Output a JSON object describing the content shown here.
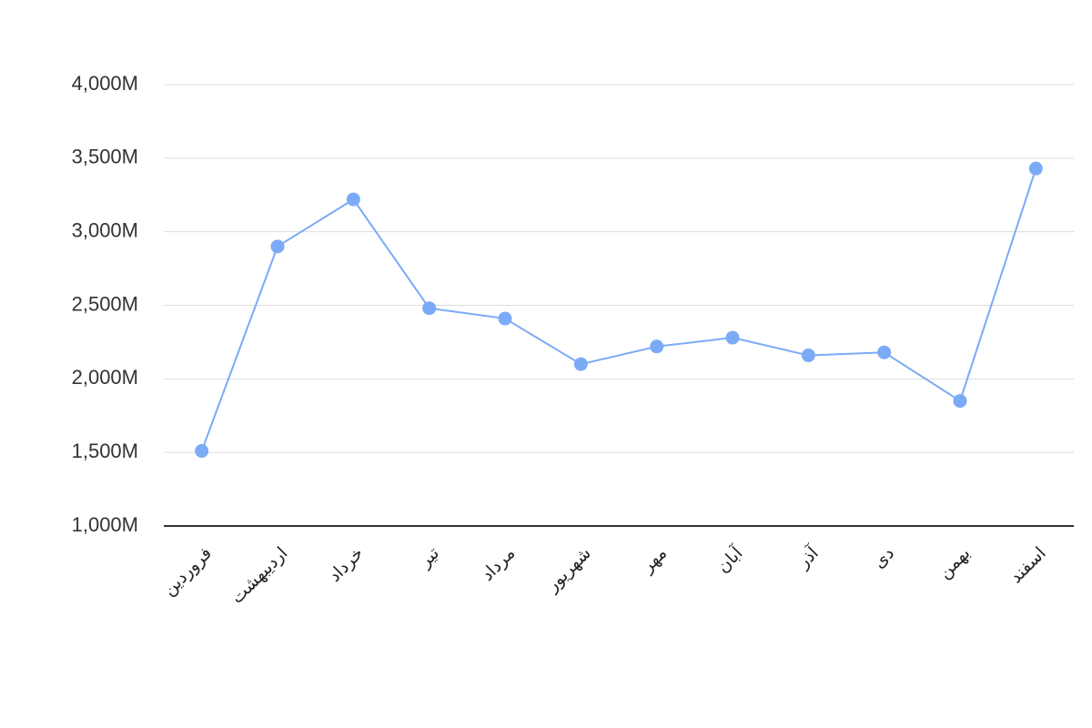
{
  "chart_data": {
    "type": "line",
    "categories": [
      "فروردین",
      "اردیبهشت",
      "خرداد",
      "تیر",
      "مرداد",
      "شهریور",
      "مهر",
      "آبان",
      "آذر",
      "دی",
      "بهمن",
      "اسفند"
    ],
    "values": [
      1510,
      2900,
      3220,
      2480,
      2410,
      2100,
      2220,
      2280,
      2160,
      2180,
      1850,
      3430
    ],
    "color": "#7baaf7",
    "ylim": [
      1000,
      4000
    ],
    "yticks": [
      {
        "value": 1000,
        "label": "1,000M"
      },
      {
        "value": 1500,
        "label": "1,500M"
      },
      {
        "value": 2000,
        "label": "2,000M"
      },
      {
        "value": 2500,
        "label": "2,500M"
      },
      {
        "value": 3000,
        "label": "3,000M"
      },
      {
        "value": 3500,
        "label": "3,500M"
      },
      {
        "value": 4000,
        "label": "4,000M"
      }
    ],
    "grid": true
  }
}
